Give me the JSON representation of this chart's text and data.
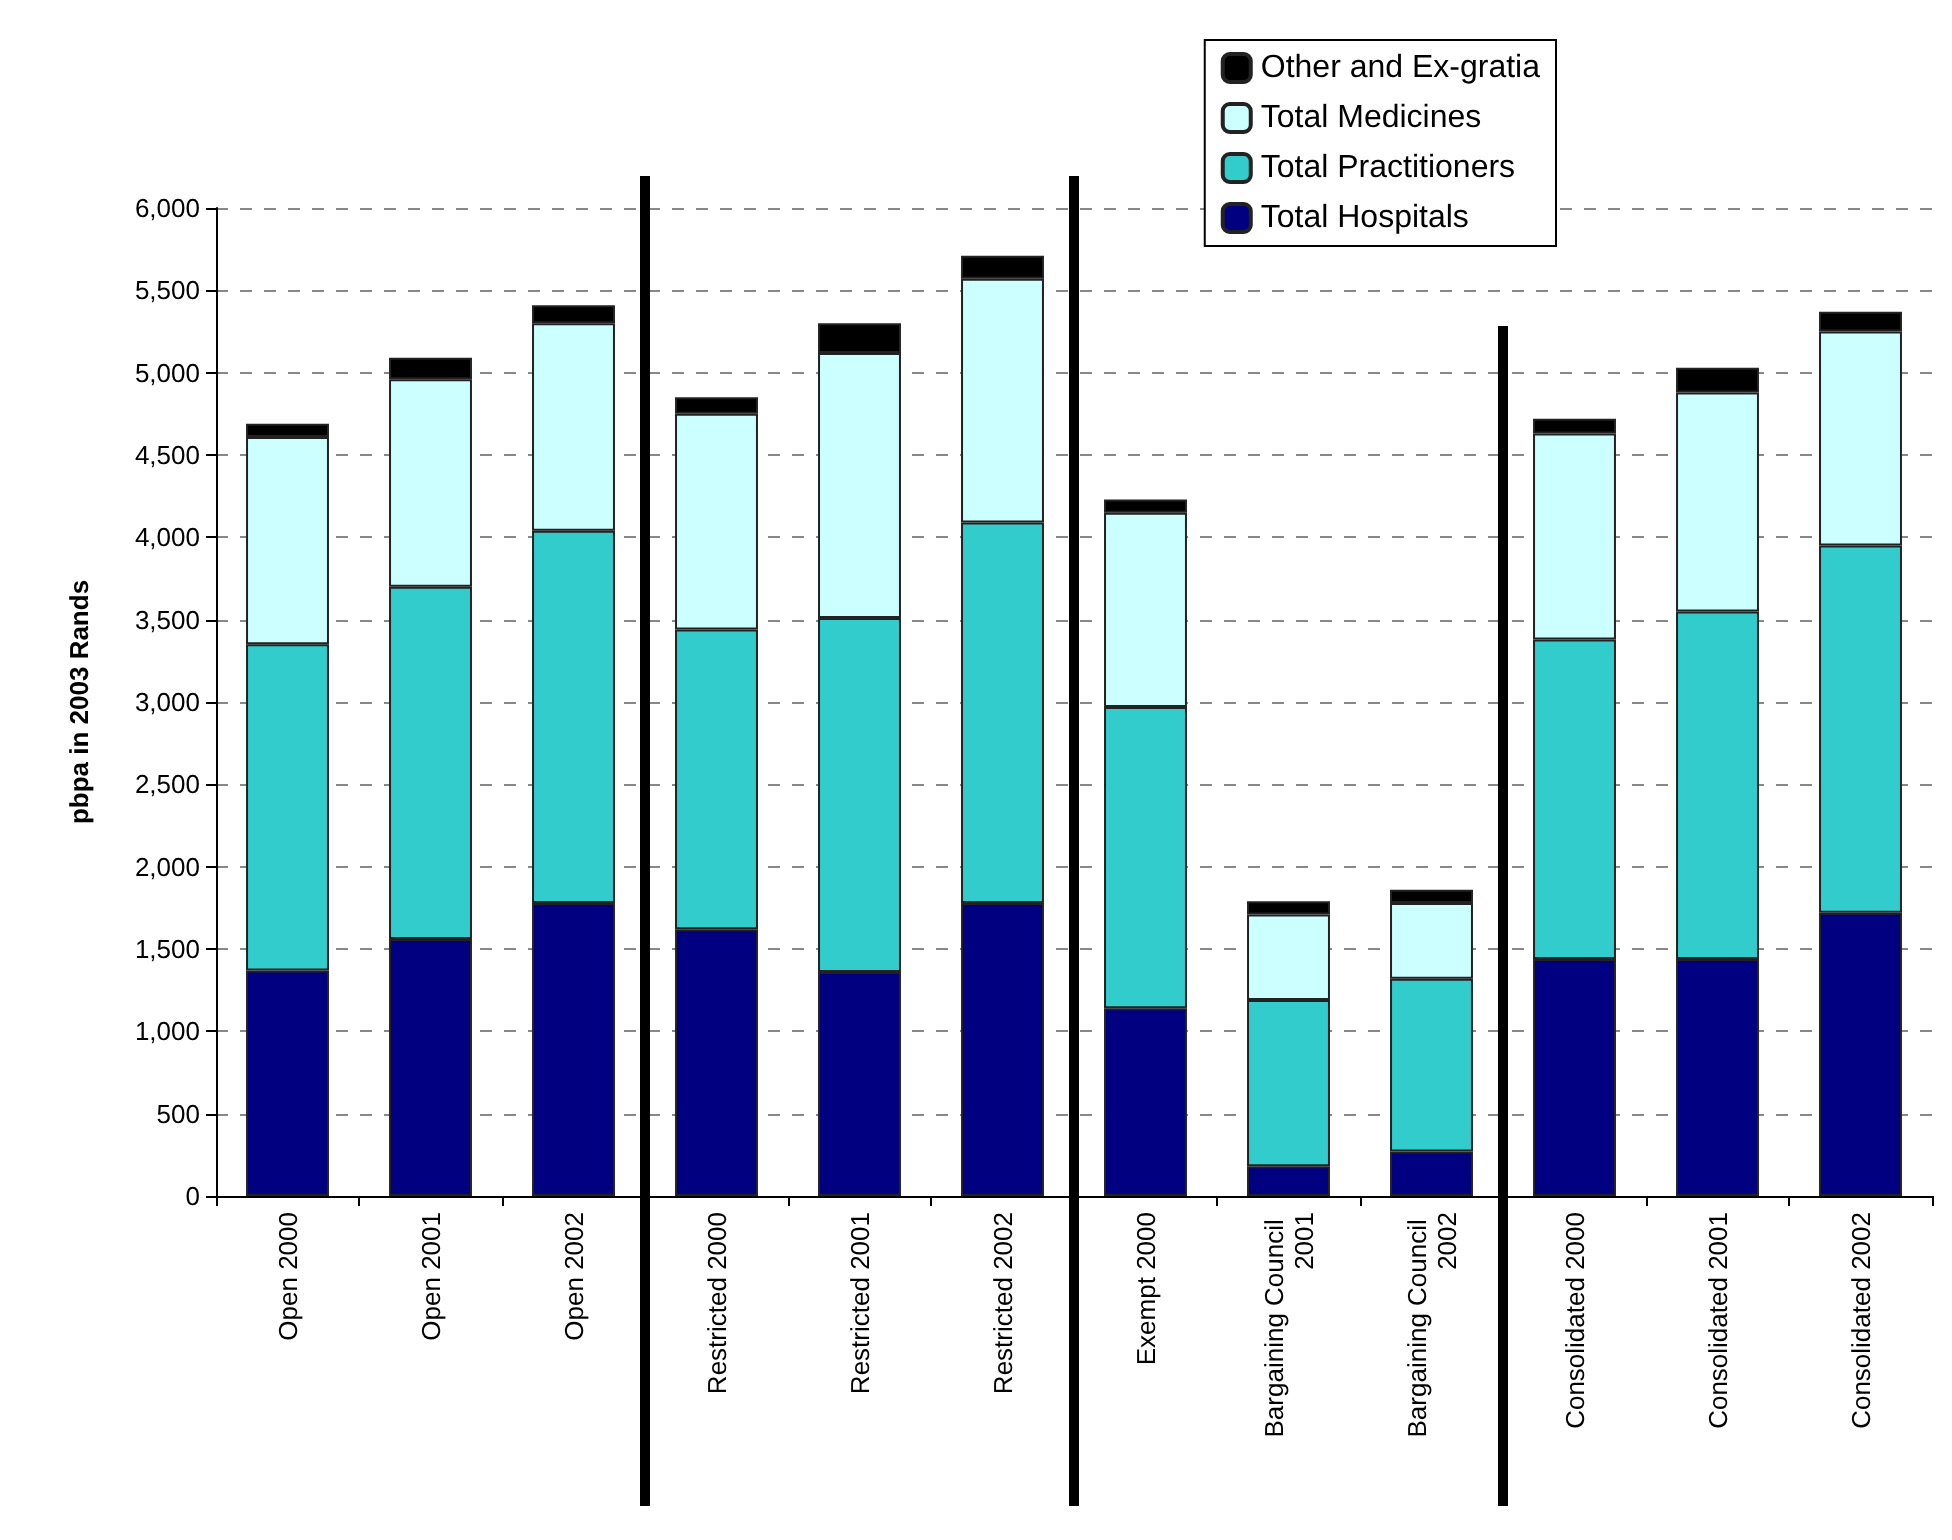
{
  "chart_data": {
    "type": "bar",
    "stacked": true,
    "ylabel": "pbpa in 2003 Rands",
    "categories": [
      "Open 2000",
      "Open 2001",
      "Open 2002",
      "Restricted 2000",
      "Restricted 2001",
      "Restricted 2002",
      "Exempt 2000",
      "Bargaining Council 2001",
      "Bargaining Council 2002",
      "Consolidated 2000",
      "Consolidated 2001",
      "Consolidated 2002"
    ],
    "series": [
      {
        "name": "Total Hospitals",
        "color": "#000080",
        "values": [
          1370,
          1560,
          1780,
          1620,
          1360,
          1780,
          1140,
          180,
          270,
          1440,
          1440,
          1720
        ]
      },
      {
        "name": "Total Practitioners",
        "color": "#33cccc",
        "values": [
          1980,
          2140,
          2260,
          1820,
          2150,
          2310,
          1830,
          1010,
          1050,
          1940,
          2110,
          2230
        ]
      },
      {
        "name": "Total Medicines",
        "color": "#ccffff",
        "values": [
          1260,
          1260,
          1260,
          1310,
          1610,
          1480,
          1180,
          520,
          460,
          1250,
          1330,
          1300
        ]
      },
      {
        "name": "Other and Ex-gratia",
        "color": "#000000",
        "values": [
          80,
          130,
          110,
          100,
          180,
          140,
          80,
          80,
          80,
          90,
          150,
          120
        ]
      }
    ],
    "ylim": [
      0,
      6000
    ],
    "yticks": [
      0,
      500,
      {
        "value": 1000,
        "label": "1,000"
      },
      {
        "value": 1500,
        "label": "1,500"
      },
      {
        "value": 2000,
        "label": "2,000"
      },
      {
        "value": 2500,
        "label": "2,500"
      },
      {
        "value": 3000,
        "label": "3,000"
      },
      {
        "value": 3500,
        "label": "3,500"
      },
      {
        "value": 4000,
        "label": "4,000"
      },
      {
        "value": 4500,
        "label": "4,500"
      },
      {
        "value": 5000,
        "label": "5,000"
      },
      {
        "value": 5500,
        "label": "5,500"
      },
      {
        "value": 6000,
        "label": "6,000"
      }
    ],
    "grid": "y",
    "legend": "top right"
  }
}
